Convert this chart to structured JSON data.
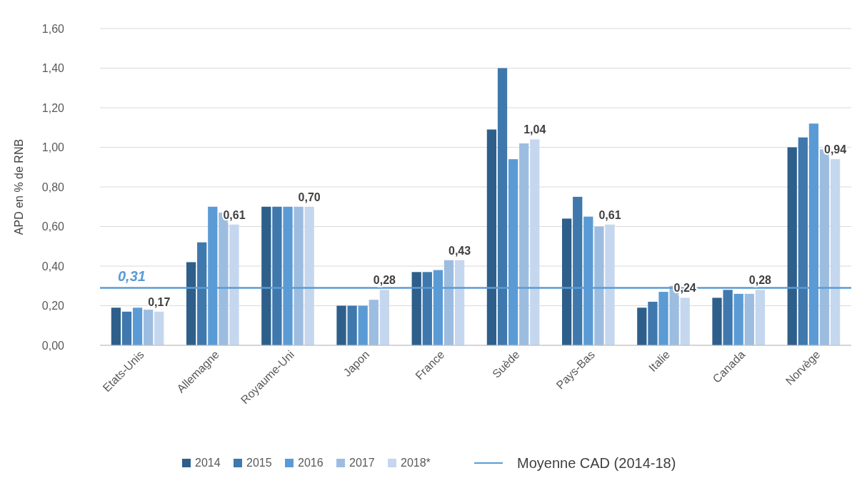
{
  "chart_data": {
    "type": "bar",
    "ylabel": "APD en % de RNB",
    "categories": [
      "Etats-Unis",
      "Allemagne",
      "Royaume-Uni",
      "Japon",
      "France",
      "Suède",
      "Pays-Bas",
      "Italie",
      "Canada",
      "Norvège"
    ],
    "series": [
      {
        "name": "2014",
        "color": "#2e5f8a",
        "values": [
          0.19,
          0.42,
          0.7,
          0.2,
          0.37,
          1.09,
          0.64,
          0.19,
          0.24,
          1.0
        ]
      },
      {
        "name": "2015",
        "color": "#3f78ad",
        "values": [
          0.17,
          0.52,
          0.7,
          0.2,
          0.37,
          1.4,
          0.75,
          0.22,
          0.28,
          1.05
        ]
      },
      {
        "name": "2016",
        "color": "#5b9bd5",
        "values": [
          0.19,
          0.7,
          0.7,
          0.2,
          0.38,
          0.94,
          0.65,
          0.27,
          0.26,
          1.12
        ]
      },
      {
        "name": "2017",
        "color": "#9dbde0",
        "values": [
          0.18,
          0.67,
          0.7,
          0.23,
          0.43,
          1.02,
          0.6,
          0.3,
          0.26,
          0.99
        ]
      },
      {
        "name": "2018*",
        "color": "#c5d7ee",
        "values": [
          0.17,
          0.61,
          0.7,
          0.28,
          0.43,
          1.04,
          0.61,
          0.24,
          0.28,
          0.94
        ],
        "value_labels": [
          "0,17",
          "0,61",
          "0,70",
          "0,28",
          "0,43",
          "1,04",
          "0,61",
          "0,24",
          "0,28",
          "0,94"
        ]
      }
    ],
    "ylim": [
      0,
      1.6
    ],
    "yticks": [
      {
        "value": 0,
        "label": "0,00"
      },
      {
        "value": 0.2,
        "label": "0,20"
      },
      {
        "value": 0.4,
        "label": "0,40"
      },
      {
        "value": 0.6,
        "label": "0,60"
      },
      {
        "value": 0.8,
        "label": "0,80"
      },
      {
        "value": 1,
        "label": "1,00"
      },
      {
        "value": 1.2,
        "label": "1,20"
      },
      {
        "value": 1.4,
        "label": "1,40"
      },
      {
        "value": 1.6,
        "label": "1,60"
      }
    ],
    "grid": "y",
    "legend": "bottom",
    "ref_lines": [
      {
        "axis": "y",
        "value": 0.29,
        "label": "Moyenne CAD (2014-18)",
        "color": "#5b9bd5"
      }
    ],
    "annotations": [
      "0,31"
    ]
  }
}
